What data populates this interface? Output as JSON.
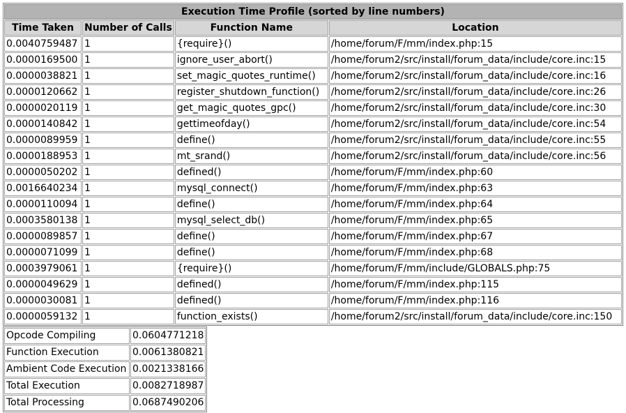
{
  "profile": {
    "title": "Execution Time Profile (sorted by line numbers)",
    "headers": {
      "time_taken": "Time Taken",
      "calls": "Number of Calls",
      "function": "Function Name",
      "location": "Location"
    },
    "rows": [
      {
        "time": "0.0040759487",
        "calls": "1",
        "func": "{require}()",
        "loc": "/home/forum/F/mm/index.php:15"
      },
      {
        "time": "0.0000169500",
        "calls": "1",
        "func": "ignore_user_abort()",
        "loc": "/home/forum2/src/install/forum_data/include/core.inc:15"
      },
      {
        "time": "0.0000038821",
        "calls": "1",
        "func": "set_magic_quotes_runtime()",
        "loc": "/home/forum2/src/install/forum_data/include/core.inc:16"
      },
      {
        "time": "0.0000120662",
        "calls": "1",
        "func": "register_shutdown_function()",
        "loc": "/home/forum2/src/install/forum_data/include/core.inc:26"
      },
      {
        "time": "0.0000020119",
        "calls": "1",
        "func": "get_magic_quotes_gpc()",
        "loc": "/home/forum2/src/install/forum_data/include/core.inc:30"
      },
      {
        "time": "0.0000140842",
        "calls": "1",
        "func": "gettimeofday()",
        "loc": "/home/forum2/src/install/forum_data/include/core.inc:54"
      },
      {
        "time": "0.0000089959",
        "calls": "1",
        "func": "define()",
        "loc": "/home/forum2/src/install/forum_data/include/core.inc:55"
      },
      {
        "time": "0.0000188953",
        "calls": "1",
        "func": "mt_srand()",
        "loc": "/home/forum2/src/install/forum_data/include/core.inc:56"
      },
      {
        "time": "0.0000050202",
        "calls": "1",
        "func": "defined()",
        "loc": "/home/forum/F/mm/index.php:60"
      },
      {
        "time": "0.0016640234",
        "calls": "1",
        "func": "mysql_connect()",
        "loc": "/home/forum/F/mm/index.php:63"
      },
      {
        "time": "0.0000110094",
        "calls": "1",
        "func": "define()",
        "loc": "/home/forum/F/mm/index.php:64"
      },
      {
        "time": "0.0003580138",
        "calls": "1",
        "func": "mysql_select_db()",
        "loc": "/home/forum/F/mm/index.php:65"
      },
      {
        "time": "0.0000089857",
        "calls": "1",
        "func": "define()",
        "loc": "/home/forum/F/mm/index.php:67"
      },
      {
        "time": "0.0000071099",
        "calls": "1",
        "func": "define()",
        "loc": "/home/forum/F/mm/index.php:68"
      },
      {
        "time": "0.0003979061",
        "calls": "1",
        "func": "{require}()",
        "loc": "/home/forum/F/mm/include/GLOBALS.php:75"
      },
      {
        "time": "0.0000049629",
        "calls": "1",
        "func": "defined()",
        "loc": "/home/forum/F/mm/index.php:115"
      },
      {
        "time": "0.0000030081",
        "calls": "1",
        "func": "defined()",
        "loc": "/home/forum/F/mm/index.php:116"
      },
      {
        "time": "0.0000059132",
        "calls": "1",
        "func": "function_exists()",
        "loc": "/home/forum2/src/install/forum_data/include/core.inc:150"
      }
    ]
  },
  "summary": [
    {
      "label": "Opcode Compiling",
      "value": "0.0604771218"
    },
    {
      "label": "Function Execution",
      "value": "0.0061380821"
    },
    {
      "label": "Ambient Code Execution",
      "value": "0.0021338166"
    },
    {
      "label": "Total Execution",
      "value": "0.0082718987"
    },
    {
      "label": "Total Processing",
      "value": "0.0687490206"
    }
  ],
  "colors": {
    "caption_bg": "#b3b3b3",
    "header_bg": "#d6d6d6",
    "border": "#a0a0a0"
  }
}
